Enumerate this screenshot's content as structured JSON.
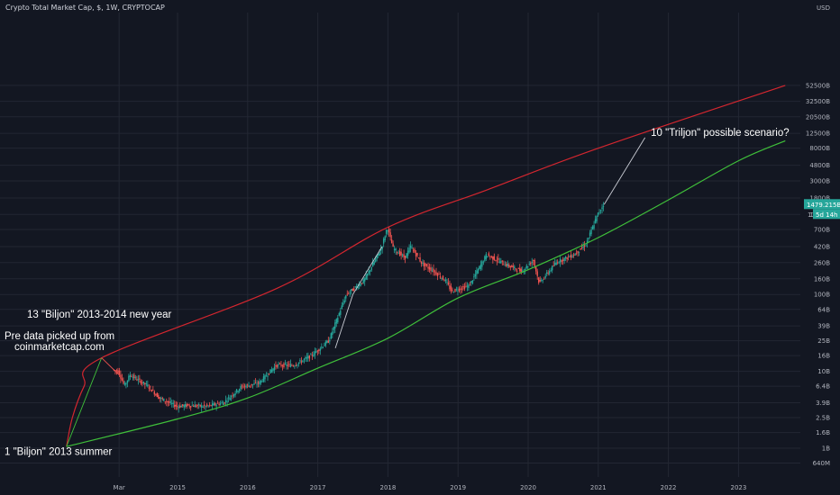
{
  "header": {
    "title": "Crypto Total Market Cap, $, 1W, CRYPTOCAP"
  },
  "colors": {
    "background": "#131722",
    "grid": "#232733",
    "up": "#26a69a",
    "down": "#ef5350",
    "channel_top": "#d3262f",
    "channel_bottom": "#3fbf3a",
    "annotation_line": "#c9ccd4",
    "price_tag": "#26a69a"
  },
  "chart_data": {
    "type": "candlestick",
    "symbol": "CRYPTOCAP",
    "interval": "1W",
    "y_scale": "log",
    "y_unit": "USD",
    "y_ticks": [
      "640M",
      "1B",
      "1.6B",
      "2.5B",
      "3.9B",
      "6.4B",
      "10B",
      "16B",
      "25B",
      "39B",
      "64B",
      "100B",
      "160B",
      "260B",
      "420B",
      "700B",
      "1100B",
      "1800B",
      "3000B",
      "4800B",
      "8000B",
      "12500B",
      "20500B",
      "32500B",
      "52500B"
    ],
    "x_ticks": [
      "Mar",
      "2015",
      "2016",
      "2017",
      "2018",
      "2019",
      "2020",
      "2021",
      "2022",
      "2023"
    ],
    "last_price": "1479.215B",
    "countdown": "5d 14h",
    "y_tick_partial": "110",
    "price_path": [
      {
        "date": "2014-02",
        "value": 10.5
      },
      {
        "date": "2014-03",
        "value": 10
      },
      {
        "date": "2014-04",
        "value": 6.5
      },
      {
        "date": "2014-05",
        "value": 9
      },
      {
        "date": "2014-06",
        "value": 8
      },
      {
        "date": "2014-08",
        "value": 6.5
      },
      {
        "date": "2014-10",
        "value": 4.5
      },
      {
        "date": "2015-01",
        "value": 3.5
      },
      {
        "date": "2015-03",
        "value": 3.6
      },
      {
        "date": "2015-06",
        "value": 3.5
      },
      {
        "date": "2015-09",
        "value": 3.9
      },
      {
        "date": "2015-12",
        "value": 6.3
      },
      {
        "date": "2016-03",
        "value": 7
      },
      {
        "date": "2016-06",
        "value": 12
      },
      {
        "date": "2016-09",
        "value": 12
      },
      {
        "date": "2016-12",
        "value": 16
      },
      {
        "date": "2017-03",
        "value": 25
      },
      {
        "date": "2017-06",
        "value": 100
      },
      {
        "date": "2017-09",
        "value": 150
      },
      {
        "date": "2017-12",
        "value": 400
      },
      {
        "date": "2018-01",
        "value": 750
      },
      {
        "date": "2018-02",
        "value": 400
      },
      {
        "date": "2018-04",
        "value": 300
      },
      {
        "date": "2018-05",
        "value": 420
      },
      {
        "date": "2018-07",
        "value": 250
      },
      {
        "date": "2018-09",
        "value": 200
      },
      {
        "date": "2018-11",
        "value": 150
      },
      {
        "date": "2018-12",
        "value": 110
      },
      {
        "date": "2019-03",
        "value": 130
      },
      {
        "date": "2019-06",
        "value": 330
      },
      {
        "date": "2019-09",
        "value": 250
      },
      {
        "date": "2019-12",
        "value": 200
      },
      {
        "date": "2020-02",
        "value": 280
      },
      {
        "date": "2020-03",
        "value": 140
      },
      {
        "date": "2020-06",
        "value": 265
      },
      {
        "date": "2020-09",
        "value": 330
      },
      {
        "date": "2020-11",
        "value": 450
      },
      {
        "date": "2020-12",
        "value": 700
      },
      {
        "date": "2021-01",
        "value": 1100
      },
      {
        "date": "2021-02",
        "value": 1479.215
      }
    ],
    "channel_top": [
      {
        "date": "2013-06",
        "value": 1.05
      },
      {
        "date": "2013-07",
        "value": 2.5
      },
      {
        "date": "2013-09",
        "value": 6.4
      },
      {
        "date": "2013-12",
        "value": 15
      },
      {
        "date": "2016-06",
        "value": 120
      },
      {
        "date": "2018-01",
        "value": 750
      },
      {
        "date": "2019-06",
        "value": 2300
      },
      {
        "date": "2021-01",
        "value": 8000
      },
      {
        "date": "2023-09",
        "value": 52500
      }
    ],
    "channel_bottom": [
      {
        "date": "2013-06",
        "value": 1.05
      },
      {
        "date": "2015-01",
        "value": 2.4
      },
      {
        "date": "2016-01",
        "value": 4.5
      },
      {
        "date": "2017-01",
        "value": 11
      },
      {
        "date": "2018-01",
        "value": 27
      },
      {
        "date": "2019-01",
        "value": 90
      },
      {
        "date": "2020-01",
        "value": 210
      },
      {
        "date": "2021-01",
        "value": 550
      },
      {
        "date": "2022-01",
        "value": 1700
      },
      {
        "date": "2023-01",
        "value": 5500
      },
      {
        "date": "2023-09",
        "value": 10000
      }
    ],
    "trend_segments": [
      {
        "from": {
          "date": "2013-06",
          "value": 1.05
        },
        "to": {
          "date": "2013-12",
          "value": 15
        }
      },
      {
        "from": {
          "date": "2013-12",
          "value": 15
        },
        "to": {
          "date": "2014-03",
          "value": 9
        }
      },
      {
        "from": {
          "date": "2017-04",
          "value": 20
        },
        "to": {
          "date": "2017-07",
          "value": 100
        }
      },
      {
        "from": {
          "date": "2017-07",
          "value": 100
        },
        "to": {
          "date": "2017-12",
          "value": 420
        }
      },
      {
        "from": {
          "date": "2021-02",
          "value": 1479.215
        },
        "to": {
          "date": "2021-09",
          "value": 11000
        }
      }
    ],
    "annotations": [
      {
        "text": "10 \"Triljon\" possible scenario?",
        "anchor": {
          "date": "2021-10",
          "value": 11500
        }
      },
      {
        "text": "13 \"Biljon\" 2013-2014 new year",
        "anchor": {
          "date": "2013-06",
          "value": 50
        }
      },
      {
        "text": "Pre data picked up from",
        "anchor": {
          "date": "2013-06",
          "value": 26
        }
      },
      {
        "text": "coinmarketcap.com",
        "anchor": {
          "date": "2013-06",
          "value": 19
        }
      },
      {
        "text": "1 \"Biljon\" 2013 summer",
        "anchor": {
          "date": "2013-06",
          "value": 0.82
        }
      }
    ]
  }
}
